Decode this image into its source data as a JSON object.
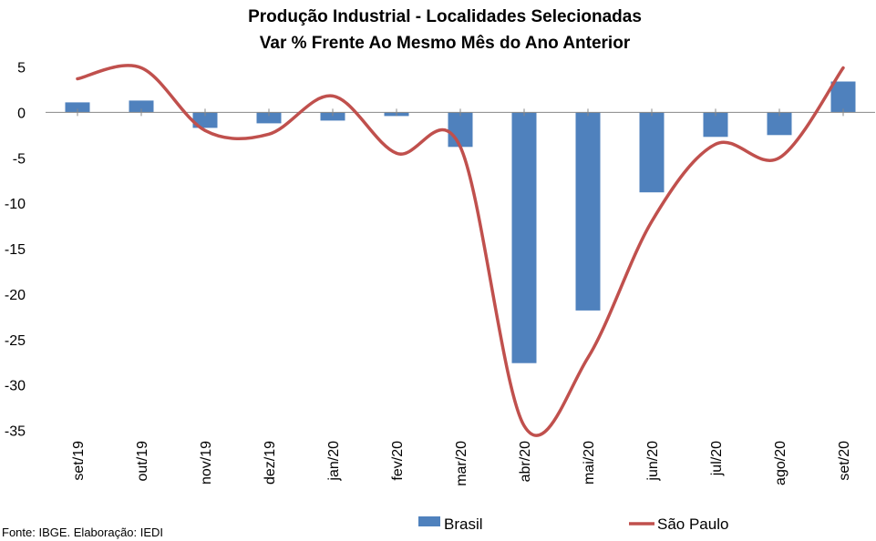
{
  "chart_data": {
    "type": "bar",
    "title": "Produção Industrial - Localidades Selecionadas",
    "subtitle": "Var % Frente Ao Mesmo Mês do Ano Anterior",
    "categories": [
      "set/19",
      "out/19",
      "nov/19",
      "dez/19",
      "jan/20",
      "fev/20",
      "mar/20",
      "abr/20",
      "mai/20",
      "jun/20",
      "jul/20",
      "ago/20",
      "set/20"
    ],
    "series": [
      {
        "name": "Brasil",
        "type": "bar",
        "color": "#4f81bd",
        "values": [
          1.1,
          1.3,
          -1.7,
          -1.2,
          -0.9,
          -0.4,
          -3.8,
          -27.6,
          -21.8,
          -8.8,
          -2.7,
          -2.5,
          3.4
        ]
      },
      {
        "name": "São Paulo",
        "type": "line",
        "color": "#c0504d",
        "values": [
          3.7,
          4.9,
          -2.0,
          -2.4,
          1.8,
          -4.5,
          -3.8,
          -34.5,
          -27.0,
          -12.0,
          -3.5,
          -5.0,
          4.9
        ]
      }
    ],
    "ylim": [
      -35,
      5
    ],
    "yticks": [
      5,
      0,
      -5,
      -10,
      -15,
      -20,
      -25,
      -30,
      -35
    ],
    "grid": false,
    "legend": "bottom"
  },
  "source": "Fonte: IBGE. Elaboração: IEDI"
}
